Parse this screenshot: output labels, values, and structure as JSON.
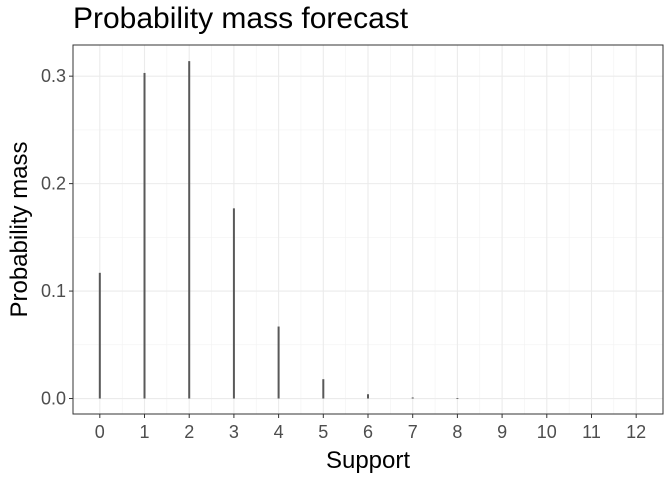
{
  "chart_data": {
    "type": "bar",
    "title": "Probability mass forecast",
    "xlabel": "Support",
    "ylabel": "Probability mass",
    "x": [
      0,
      1,
      2,
      3,
      4,
      5,
      6,
      7,
      8,
      9,
      10,
      11,
      12
    ],
    "values": [
      0.117,
      0.303,
      0.314,
      0.177,
      0.067,
      0.018,
      0.004,
      0.001,
      0.0003,
      0,
      0,
      0,
      0
    ],
    "xlim": [
      -0.6,
      12.6
    ],
    "ylim": [
      -0.0144,
      0.329
    ],
    "xticks": [
      "0",
      "1",
      "2",
      "3",
      "4",
      "5",
      "6",
      "7",
      "8",
      "9",
      "10",
      "11",
      "12"
    ],
    "yticks": [
      "0.0",
      "0.1",
      "0.2",
      "0.3"
    ],
    "grid": true,
    "bar_color": "#595959"
  }
}
